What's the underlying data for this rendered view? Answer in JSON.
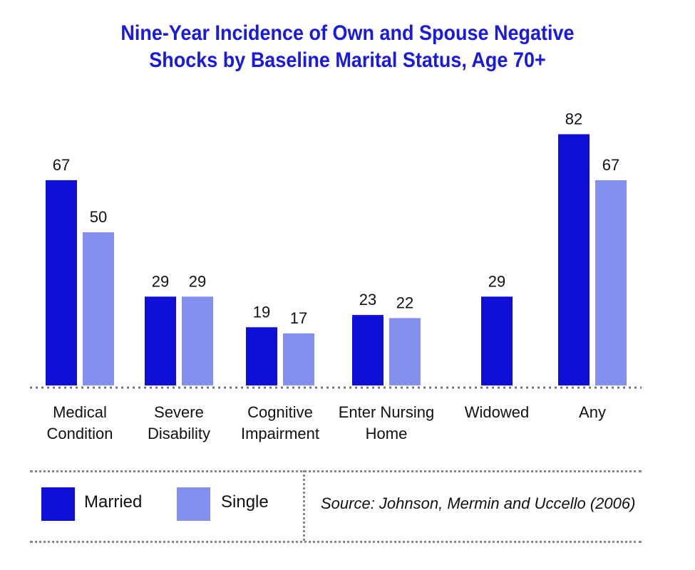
{
  "chart_data": {
    "type": "bar",
    "title_line1": "Nine-Year Incidence of Own and Spouse Negative",
    "title_line2": "Shocks by Baseline Marital Status, Age 70+",
    "categories": [
      [
        "Medical",
        "Condition"
      ],
      [
        "Severe",
        "Disability"
      ],
      [
        "Cognitive",
        "Impairment"
      ],
      [
        "Enter Nursing",
        "Home"
      ],
      [
        "Widowed"
      ],
      [
        "Any"
      ]
    ],
    "series": [
      {
        "name": "Married",
        "color": "#0f0fd6",
        "values": [
          67,
          29,
          19,
          23,
          29,
          82
        ]
      },
      {
        "name": "Single",
        "color": "#8490ee",
        "values": [
          50,
          29,
          17,
          22,
          null,
          67
        ]
      }
    ],
    "ylim": [
      0,
      85
    ],
    "grid": false,
    "legend_placement": "bottom-left",
    "source": "Source: Johnson, Mermin and Uccello (2006)"
  }
}
